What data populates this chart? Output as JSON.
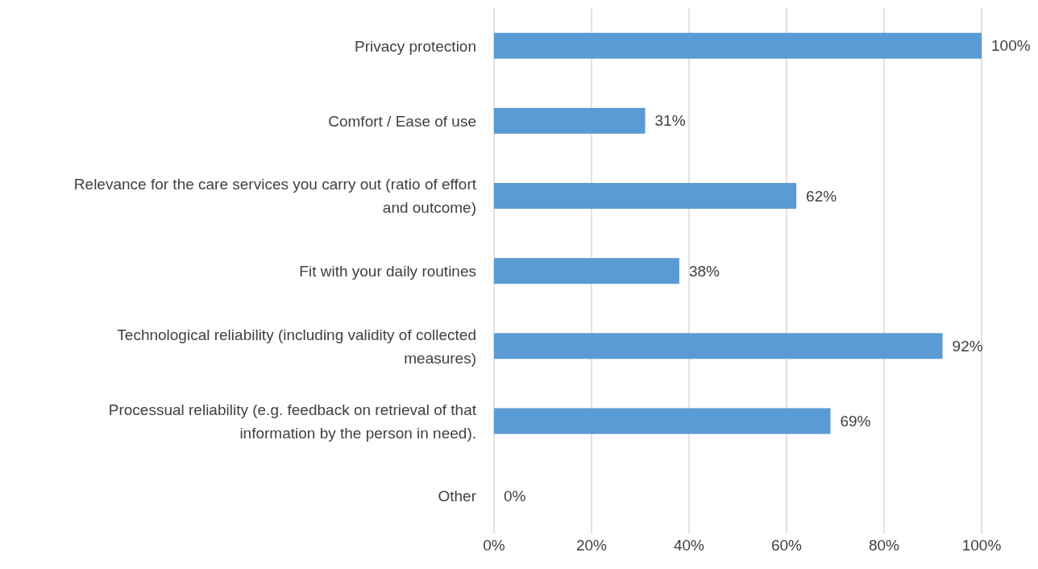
{
  "chart_data": {
    "type": "bar",
    "orientation": "horizontal",
    "categories": [
      "Privacy protection",
      "Comfort / Ease of use",
      "Relevance for the care services you carry out (ratio of effort and outcome)",
      "Fit with your daily routines",
      "Technological reliability (including validity of collected measures)",
      "Processual reliability (e.g. feedback on retrieval of that information by the person in need).",
      "Other"
    ],
    "values": [
      100,
      31,
      62,
      38,
      92,
      69,
      0
    ],
    "value_labels": [
      "100%",
      "31%",
      "62%",
      "38%",
      "92%",
      "69%",
      "0%"
    ],
    "color": "#5b9bd5",
    "xlim": [
      0,
      100
    ],
    "xticks": [
      {
        "value": 0,
        "label": "0%"
      },
      {
        "value": 20,
        "label": "20%"
      },
      {
        "value": 40,
        "label": "40%"
      },
      {
        "value": 60,
        "label": "60%"
      },
      {
        "value": 80,
        "label": "80%"
      },
      {
        "value": 100,
        "label": "100%"
      }
    ],
    "grid": "x",
    "legend": false
  }
}
